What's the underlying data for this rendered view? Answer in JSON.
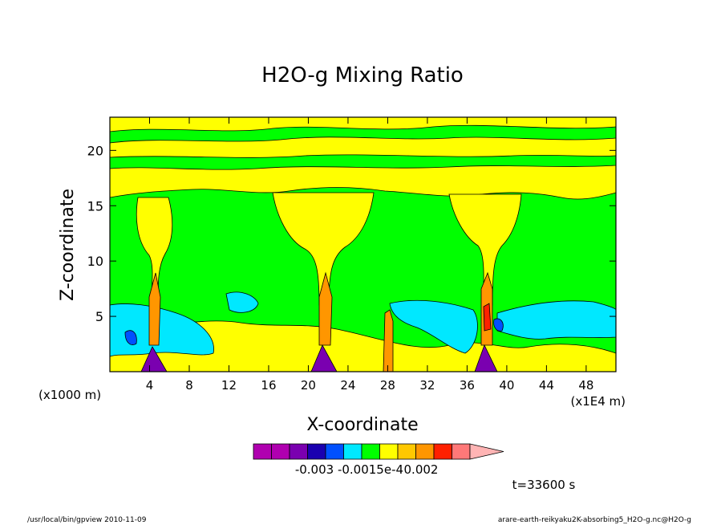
{
  "chart_data": {
    "type": "heatmap",
    "title": "H2O-g Mixing Ratio",
    "xlabel": "X-coordinate",
    "ylabel": "Z-coordinate",
    "x_unit": "(x1000 m)",
    "x_scale_note": "(x1E4 m)",
    "xlim": [
      0,
      51
    ],
    "ylim": [
      0,
      23
    ],
    "x_ticks": [
      4,
      8,
      12,
      16,
      20,
      24,
      28,
      32,
      36,
      40,
      44,
      48
    ],
    "y_ticks": [
      5,
      10,
      15,
      20
    ],
    "colorbar_labels": [
      "-0.003",
      "-0.0015e-4",
      "0.002"
    ],
    "colors": {
      "magenta": "#b000b0",
      "purple": "#7a00b0",
      "darkblue": "#1a00b0",
      "blue": "#0050ff",
      "cyan": "#00e8ff",
      "green": "#00ff00",
      "yellow": "#ffff00",
      "orange1": "#ffc800",
      "orange2": "#ff9600",
      "red": "#ff2000",
      "salmon": "#ff7878",
      "pink": "#ffb4b4"
    },
    "annotation_time": "t=33600 s"
  },
  "footer": {
    "left": "/usr/local/bin/gpview  2010-11-09",
    "right": "arare-earth-reikyaku2K-absorbing5_H2O-g.nc@H2O-g"
  }
}
